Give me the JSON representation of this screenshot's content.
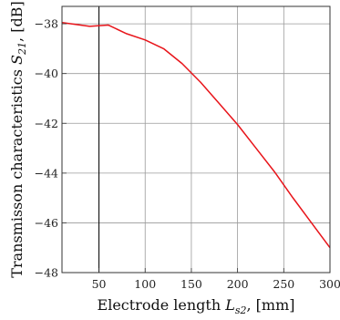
{
  "chart_data": {
    "type": "line",
    "title": "",
    "xlabel_text": "Electrode length ",
    "xlabel_var": "L",
    "xlabel_sub": "s2",
    "xlabel_unit": ", [mm]",
    "ylabel_text": "Transmisson characteristics ",
    "ylabel_var": "S",
    "ylabel_sub": "21",
    "ylabel_unit": ", [dB]",
    "xlim": [
      10,
      300
    ],
    "ylim": [
      -48,
      -37.3
    ],
    "grid": true,
    "x_ticks": [
      50,
      100,
      150,
      200,
      250,
      300
    ],
    "y_ticks": [
      -38,
      -40,
      -42,
      -44,
      -46,
      -48
    ],
    "x_tick_labels": [
      "50",
      "100",
      "150",
      "200",
      "250",
      "300"
    ],
    "y_tick_labels": [
      "−38",
      "−40",
      "−42",
      "−44",
      "−46",
      "−48"
    ],
    "vertical_reference_line_x": 50,
    "series": [
      {
        "color": "#e8141a",
        "x": [
          10,
          40,
          60,
          80,
          100,
          120,
          140,
          160,
          180,
          200,
          220,
          240,
          260,
          280,
          300
        ],
        "y": [
          -37.95,
          -38.1,
          -38.05,
          -38.4,
          -38.65,
          -39.0,
          -39.6,
          -40.35,
          -41.2,
          -42.05,
          -43.0,
          -43.95,
          -45.0,
          -46.0,
          -47.0
        ]
      }
    ]
  }
}
